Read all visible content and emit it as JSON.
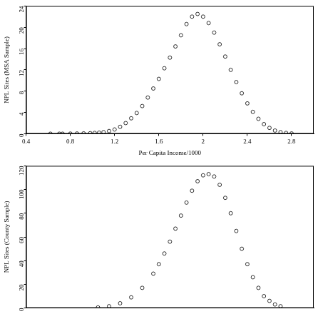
{
  "chart_data": [
    {
      "type": "scatter",
      "xlabel": "Per Capita Income/1000",
      "ylabel": "NPL Sites (MSA Sample)",
      "xlim": [
        0.4,
        3.0
      ],
      "ylim": [
        0,
        24
      ],
      "xticks": [
        0.4,
        0.8,
        1.2,
        1.6,
        2.0,
        2.4,
        2.8
      ],
      "yticks": [
        0,
        4,
        8,
        12,
        16,
        20,
        24
      ],
      "grid": false,
      "marker": "circle",
      "color": "#000000",
      "x": [
        0.62,
        0.7,
        0.73,
        0.8,
        0.86,
        0.92,
        0.98,
        1.02,
        1.06,
        1.1,
        1.15,
        1.2,
        1.25,
        1.3,
        1.35,
        1.4,
        1.45,
        1.5,
        1.55,
        1.6,
        1.65,
        1.7,
        1.75,
        1.8,
        1.85,
        1.9,
        1.95,
        2.0,
        2.05,
        2.1,
        2.15,
        2.2,
        2.25,
        2.3,
        2.35,
        2.4,
        2.45,
        2.5,
        2.55,
        2.6,
        2.65,
        2.7,
        2.75,
        2.8
      ],
      "values": [
        0,
        0,
        0,
        0.02,
        0.04,
        0.07,
        0.1,
        0.15,
        0.2,
        0.3,
        0.5,
        0.8,
        1.3,
        2.0,
        2.9,
        3.9,
        5.2,
        6.8,
        8.5,
        10.3,
        12.3,
        14.3,
        16.4,
        18.5,
        20.6,
        22.0,
        22.5,
        22.0,
        20.8,
        19.0,
        16.8,
        14.5,
        12.0,
        9.7,
        7.6,
        5.7,
        4.1,
        2.8,
        1.8,
        1.1,
        0.6,
        0.3,
        0.15,
        0.05
      ]
    },
    {
      "type": "scatter",
      "ylabel": "NPL Sites (County Sample)",
      "xlim": [
        0.4,
        3.0
      ],
      "ylim": [
        0,
        120
      ],
      "yticks": [
        0,
        20,
        40,
        60,
        80,
        100,
        120
      ],
      "grid": false,
      "marker": "circle",
      "color": "#000000",
      "tick_labels": "y",
      "x": [
        1.05,
        1.15,
        1.25,
        1.35,
        1.45,
        1.55,
        1.6,
        1.65,
        1.7,
        1.75,
        1.8,
        1.85,
        1.9,
        1.95,
        2.0,
        2.05,
        2.1,
        2.15,
        2.2,
        2.25,
        2.3,
        2.35,
        2.4,
        2.45,
        2.5,
        2.55,
        2.6,
        2.65,
        2.7
      ],
      "values": [
        0.5,
        1.5,
        4,
        9,
        17,
        29,
        37,
        46,
        56,
        67,
        78,
        89,
        99,
        107,
        112,
        113,
        111,
        104,
        93,
        80,
        65,
        50,
        37,
        26,
        17,
        10,
        6,
        3,
        1.5
      ]
    }
  ]
}
